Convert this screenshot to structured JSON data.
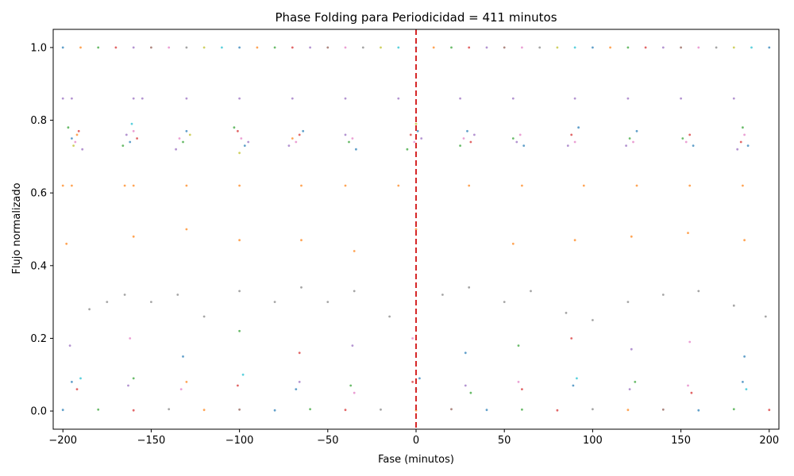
{
  "chart_data": {
    "type": "scatter",
    "title": "Phase Folding para Periodicidad = 411 minutos",
    "xlabel": "Fase (minutos)",
    "ylabel": "Flujo normalizado",
    "xlim": [
      -205.5,
      205.5
    ],
    "ylim": [
      -0.05,
      1.05
    ],
    "xticks": [
      -200,
      -150,
      -100,
      -50,
      0,
      50,
      100,
      150,
      200
    ],
    "xtick_labels": [
      "−200",
      "−150",
      "−100",
      "−50",
      "0",
      "50",
      "100",
      "150",
      "200"
    ],
    "yticks": [
      0.0,
      0.2,
      0.4,
      0.6,
      0.8,
      1.0
    ],
    "ytick_labels": [
      "0.0",
      "0.2",
      "0.4",
      "0.6",
      "0.8",
      "1.0"
    ],
    "grid": false,
    "legend": "none",
    "reference_line": {
      "x": 0,
      "style": "dashed",
      "color": "#d62728"
    },
    "colors": [
      "#1f77b4",
      "#ff7f0e",
      "#2ca02c",
      "#d62728",
      "#9467bd",
      "#8c564b",
      "#e377c2",
      "#7f7f7f",
      "#bcbd22",
      "#17becf"
    ],
    "points": [
      [
        -200,
        1.0,
        0
      ],
      [
        -190,
        1.0,
        1
      ],
      [
        -180,
        1.0,
        2
      ],
      [
        -170,
        1.0,
        3
      ],
      [
        -160,
        1.0,
        4
      ],
      [
        -150,
        1.0,
        5
      ],
      [
        -140,
        1.0,
        6
      ],
      [
        -130,
        1.0,
        7
      ],
      [
        -120,
        1.0,
        8
      ],
      [
        -110,
        1.0,
        9
      ],
      [
        -100,
        1.0,
        0
      ],
      [
        -90,
        1.0,
        1
      ],
      [
        -80,
        1.0,
        2
      ],
      [
        -70,
        1.0,
        3
      ],
      [
        -60,
        1.0,
        4
      ],
      [
        -50,
        1.0,
        5
      ],
      [
        -40,
        1.0,
        6
      ],
      [
        -30,
        1.0,
        7
      ],
      [
        -20,
        1.0,
        8
      ],
      [
        -10,
        1.0,
        9
      ],
      [
        0,
        1.0,
        0
      ],
      [
        10,
        1.0,
        1
      ],
      [
        20,
        1.0,
        2
      ],
      [
        30,
        1.0,
        3
      ],
      [
        40,
        1.0,
        4
      ],
      [
        50,
        1.0,
        5
      ],
      [
        60,
        1.0,
        6
      ],
      [
        70,
        1.0,
        7
      ],
      [
        80,
        1.0,
        8
      ],
      [
        90,
        1.0,
        9
      ],
      [
        100,
        1.0,
        0
      ],
      [
        110,
        1.0,
        1
      ],
      [
        120,
        1.0,
        2
      ],
      [
        130,
        1.0,
        3
      ],
      [
        140,
        1.0,
        4
      ],
      [
        150,
        1.0,
        5
      ],
      [
        160,
        1.0,
        6
      ],
      [
        170,
        1.0,
        7
      ],
      [
        180,
        1.0,
        8
      ],
      [
        190,
        1.0,
        9
      ],
      [
        200,
        1.0,
        0
      ],
      [
        -195,
        0.75,
        0
      ],
      [
        -193,
        0.74,
        6
      ],
      [
        -191,
        0.77,
        3
      ],
      [
        -189,
        0.72,
        4
      ],
      [
        -197,
        0.78,
        2
      ],
      [
        -194,
        0.73,
        8
      ],
      [
        -192,
        0.76,
        1
      ],
      [
        -164,
        0.76,
        4
      ],
      [
        -162,
        0.74,
        0
      ],
      [
        -160,
        0.77,
        6
      ],
      [
        -166,
        0.73,
        2
      ],
      [
        -158,
        0.75,
        3
      ],
      [
        -161,
        0.79,
        9
      ],
      [
        -134,
        0.75,
        6
      ],
      [
        -132,
        0.74,
        2
      ],
      [
        -130,
        0.77,
        0
      ],
      [
        -136,
        0.72,
        4
      ],
      [
        -128,
        0.76,
        8
      ],
      [
        -101,
        0.77,
        3
      ],
      [
        -99,
        0.75,
        6
      ],
      [
        -97,
        0.73,
        0
      ],
      [
        -103,
        0.78,
        2
      ],
      [
        -95,
        0.74,
        4
      ],
      [
        -100,
        0.71,
        8
      ],
      [
        -70,
        0.75,
        1
      ],
      [
        -68,
        0.74,
        6
      ],
      [
        -66,
        0.76,
        3
      ],
      [
        -72,
        0.73,
        4
      ],
      [
        -64,
        0.77,
        0
      ],
      [
        -38,
        0.74,
        2
      ],
      [
        -36,
        0.75,
        6
      ],
      [
        -34,
        0.72,
        0
      ],
      [
        -40,
        0.76,
        4
      ],
      [
        -3,
        0.76,
        3
      ],
      [
        -1,
        0.74,
        6
      ],
      [
        1,
        0.77,
        0
      ],
      [
        -5,
        0.72,
        2
      ],
      [
        3,
        0.75,
        4
      ],
      [
        0,
        0.79,
        8
      ],
      [
        27,
        0.75,
        6
      ],
      [
        29,
        0.77,
        0
      ],
      [
        31,
        0.74,
        3
      ],
      [
        25,
        0.73,
        2
      ],
      [
        33,
        0.76,
        4
      ],
      [
        57,
        0.74,
        4
      ],
      [
        59,
        0.76,
        6
      ],
      [
        61,
        0.73,
        0
      ],
      [
        55,
        0.75,
        2
      ],
      [
        88,
        0.76,
        3
      ],
      [
        90,
        0.74,
        6
      ],
      [
        92,
        0.78,
        0
      ],
      [
        86,
        0.73,
        4
      ],
      [
        121,
        0.75,
        2
      ],
      [
        123,
        0.74,
        6
      ],
      [
        125,
        0.77,
        0
      ],
      [
        119,
        0.73,
        4
      ],
      [
        153,
        0.74,
        6
      ],
      [
        155,
        0.76,
        3
      ],
      [
        157,
        0.73,
        0
      ],
      [
        151,
        0.75,
        2
      ],
      [
        184,
        0.74,
        3
      ],
      [
        186,
        0.76,
        6
      ],
      [
        188,
        0.73,
        0
      ],
      [
        182,
        0.72,
        4
      ],
      [
        185,
        0.78,
        2
      ],
      [
        -200,
        0.86,
        4
      ],
      [
        -195,
        0.86,
        4
      ],
      [
        -160,
        0.86,
        4
      ],
      [
        -155,
        0.86,
        4
      ],
      [
        -130,
        0.86,
        4
      ],
      [
        -100,
        0.86,
        4
      ],
      [
        -70,
        0.86,
        4
      ],
      [
        -40,
        0.86,
        4
      ],
      [
        -10,
        0.86,
        4
      ],
      [
        25,
        0.86,
        4
      ],
      [
        55,
        0.86,
        4
      ],
      [
        90,
        0.86,
        4
      ],
      [
        120,
        0.86,
        4
      ],
      [
        150,
        0.86,
        4
      ],
      [
        180,
        0.86,
        4
      ],
      [
        -200,
        0.62,
        1
      ],
      [
        -195,
        0.62,
        1
      ],
      [
        -165,
        0.62,
        1
      ],
      [
        -160,
        0.62,
        1
      ],
      [
        -130,
        0.62,
        1
      ],
      [
        -100,
        0.62,
        1
      ],
      [
        -65,
        0.62,
        1
      ],
      [
        -40,
        0.62,
        1
      ],
      [
        -10,
        0.62,
        1
      ],
      [
        30,
        0.62,
        1
      ],
      [
        60,
        0.62,
        1
      ],
      [
        95,
        0.62,
        1
      ],
      [
        125,
        0.62,
        1
      ],
      [
        155,
        0.62,
        1
      ],
      [
        185,
        0.62,
        1
      ],
      [
        -198,
        0.46,
        1
      ],
      [
        -160,
        0.48,
        1
      ],
      [
        -130,
        0.5,
        1
      ],
      [
        -100,
        0.47,
        1
      ],
      [
        -65,
        0.47,
        1
      ],
      [
        -35,
        0.44,
        1
      ],
      [
        0,
        0.5,
        1
      ],
      [
        55,
        0.46,
        1
      ],
      [
        90,
        0.47,
        1
      ],
      [
        122,
        0.48,
        1
      ],
      [
        154,
        0.49,
        1
      ],
      [
        186,
        0.47,
        1
      ],
      [
        -185,
        0.28,
        7
      ],
      [
        -175,
        0.3,
        7
      ],
      [
        -165,
        0.32,
        7
      ],
      [
        -150,
        0.3,
        7
      ],
      [
        -135,
        0.32,
        7
      ],
      [
        -120,
        0.26,
        7
      ],
      [
        -100,
        0.33,
        7
      ],
      [
        -80,
        0.3,
        7
      ],
      [
        -65,
        0.34,
        7
      ],
      [
        -50,
        0.3,
        7
      ],
      [
        -35,
        0.33,
        7
      ],
      [
        -15,
        0.26,
        7
      ],
      [
        15,
        0.32,
        7
      ],
      [
        30,
        0.34,
        7
      ],
      [
        50,
        0.3,
        7
      ],
      [
        65,
        0.33,
        7
      ],
      [
        85,
        0.27,
        7
      ],
      [
        100,
        0.25,
        7
      ],
      [
        120,
        0.3,
        7
      ],
      [
        140,
        0.32,
        7
      ],
      [
        160,
        0.33,
        7
      ],
      [
        180,
        0.29,
        7
      ],
      [
        198,
        0.26,
        7
      ],
      [
        -196,
        0.18,
        4
      ],
      [
        -162,
        0.2,
        6
      ],
      [
        -132,
        0.15,
        0
      ],
      [
        -100,
        0.22,
        2
      ],
      [
        -66,
        0.16,
        3
      ],
      [
        -36,
        0.18,
        4
      ],
      [
        -2,
        0.2,
        6
      ],
      [
        28,
        0.16,
        0
      ],
      [
        58,
        0.18,
        2
      ],
      [
        88,
        0.2,
        3
      ],
      [
        122,
        0.17,
        4
      ],
      [
        155,
        0.19,
        6
      ],
      [
        186,
        0.15,
        0
      ],
      [
        -195,
        0.08,
        0
      ],
      [
        -192,
        0.06,
        3
      ],
      [
        -190,
        0.09,
        9
      ],
      [
        -163,
        0.07,
        4
      ],
      [
        -160,
        0.09,
        2
      ],
      [
        -133,
        0.06,
        6
      ],
      [
        -130,
        0.08,
        1
      ],
      [
        -101,
        0.07,
        3
      ],
      [
        -98,
        0.1,
        9
      ],
      [
        -68,
        0.06,
        0
      ],
      [
        -66,
        0.08,
        4
      ],
      [
        -37,
        0.07,
        2
      ],
      [
        -35,
        0.05,
        6
      ],
      [
        -2,
        0.08,
        3
      ],
      [
        0,
        0.06,
        9
      ],
      [
        2,
        0.09,
        0
      ],
      [
        28,
        0.07,
        4
      ],
      [
        31,
        0.05,
        2
      ],
      [
        58,
        0.08,
        6
      ],
      [
        60,
        0.06,
        3
      ],
      [
        89,
        0.07,
        0
      ],
      [
        91,
        0.09,
        9
      ],
      [
        121,
        0.06,
        4
      ],
      [
        124,
        0.08,
        2
      ],
      [
        154,
        0.07,
        6
      ],
      [
        156,
        0.05,
        3
      ],
      [
        185,
        0.08,
        0
      ],
      [
        187,
        0.06,
        9
      ],
      [
        -200,
        0.003,
        0
      ],
      [
        -180,
        0.004,
        2
      ],
      [
        -160,
        0.002,
        3
      ],
      [
        -140,
        0.005,
        7
      ],
      [
        -120,
        0.003,
        1
      ],
      [
        -100,
        0.004,
        5
      ],
      [
        -80,
        0.002,
        0
      ],
      [
        -60,
        0.005,
        2
      ],
      [
        -40,
        0.003,
        3
      ],
      [
        -20,
        0.004,
        7
      ],
      [
        0,
        0.002,
        1
      ],
      [
        20,
        0.005,
        5
      ],
      [
        40,
        0.003,
        0
      ],
      [
        60,
        0.004,
        2
      ],
      [
        80,
        0.002,
        3
      ],
      [
        100,
        0.005,
        7
      ],
      [
        120,
        0.003,
        1
      ],
      [
        140,
        0.004,
        5
      ],
      [
        160,
        0.002,
        0
      ],
      [
        180,
        0.005,
        2
      ],
      [
        200,
        0.003,
        3
      ]
    ]
  }
}
